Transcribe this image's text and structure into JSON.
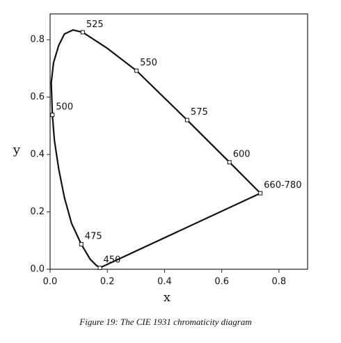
{
  "chart_data": {
    "type": "line",
    "title": "Figure 19:  The CIE 1931 chromaticity diagram",
    "x_label": "x",
    "y_label": "y",
    "x": [
      0.735,
      0.627,
      0.479,
      0.302,
      0.2,
      0.114,
      0.08,
      0.05,
      0.03,
      0.012,
      0.004,
      0.008,
      0.015,
      0.03,
      0.05,
      0.075,
      0.109,
      0.14,
      0.16,
      0.174,
      0.735
    ],
    "values": [
      0.265,
      0.373,
      0.52,
      0.692,
      0.77,
      0.826,
      0.834,
      0.82,
      0.78,
      0.72,
      0.65,
      0.538,
      0.45,
      0.35,
      0.25,
      0.16,
      0.087,
      0.035,
      0.015,
      0.005,
      0.265
    ],
    "color": "#111111",
    "marked_points": [
      {
        "label": "660-780",
        "x": 0.735,
        "y": 0.265
      },
      {
        "label": "600",
        "x": 0.627,
        "y": 0.373
      },
      {
        "label": "575",
        "x": 0.479,
        "y": 0.52
      },
      {
        "label": "550",
        "x": 0.302,
        "y": 0.692
      },
      {
        "label": "525",
        "x": 0.114,
        "y": 0.826
      },
      {
        "label": "500",
        "x": 0.008,
        "y": 0.538
      },
      {
        "label": "475",
        "x": 0.109,
        "y": 0.087
      },
      {
        "label": "450",
        "x": 0.174,
        "y": 0.005
      }
    ],
    "xlim": [
      0,
      0.9
    ],
    "ylim": [
      0,
      0.89
    ],
    "xticks": [
      {
        "value": 0,
        "label": "0.0"
      },
      0.2,
      0.4,
      0.6,
      0.8
    ],
    "yticks": [
      {
        "value": 0,
        "label": "0.0"
      },
      0.2,
      0.4,
      0.6,
      0.8
    ],
    "grid": false
  }
}
